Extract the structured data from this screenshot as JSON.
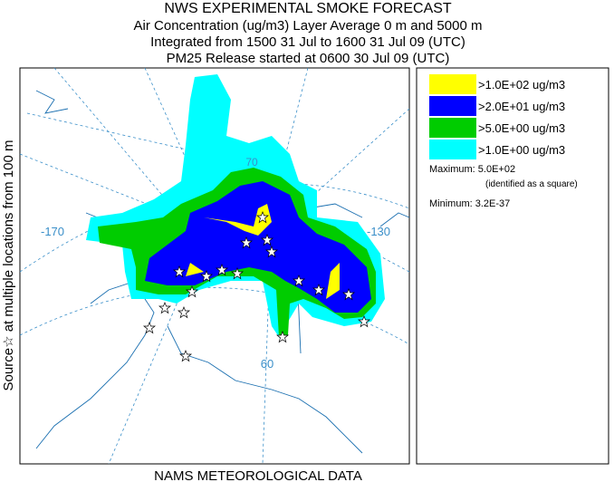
{
  "header": {
    "title": "NWS EXPERIMENTAL SMOKE FORECAST",
    "lines": [
      "Air Concentration (ug/m3) Layer Average    0 m and  5000 m",
      "Integrated from 1500 31 Jul to 1600 31 Jul 09 (UTC)",
      "PM25 Release started at 0600 30 Jul 09 (UTC)"
    ]
  },
  "side_label": "Source☆ at multiple locations   from   100 m",
  "footer": "NAMS METEOROLOGICAL DATA",
  "legend": {
    "items": [
      {
        "label": ">1.0E+02 ug/m3",
        "color": "#ffff00"
      },
      {
        "label": ">2.0E+01 ug/m3",
        "color": "#0000ff"
      },
      {
        "label": ">5.0E+00 ug/m3",
        "color": "#00cc00"
      },
      {
        "label": ">1.0E+00 ug/m3",
        "color": "#00ffff"
      }
    ],
    "maximum": "Maximum: 5.0E+02",
    "maximum_note": "(identified as a square)",
    "minimum": "Minimum: 3.2E-37"
  },
  "map_labels": [
    "-170",
    "-130",
    "70",
    "60"
  ]
}
